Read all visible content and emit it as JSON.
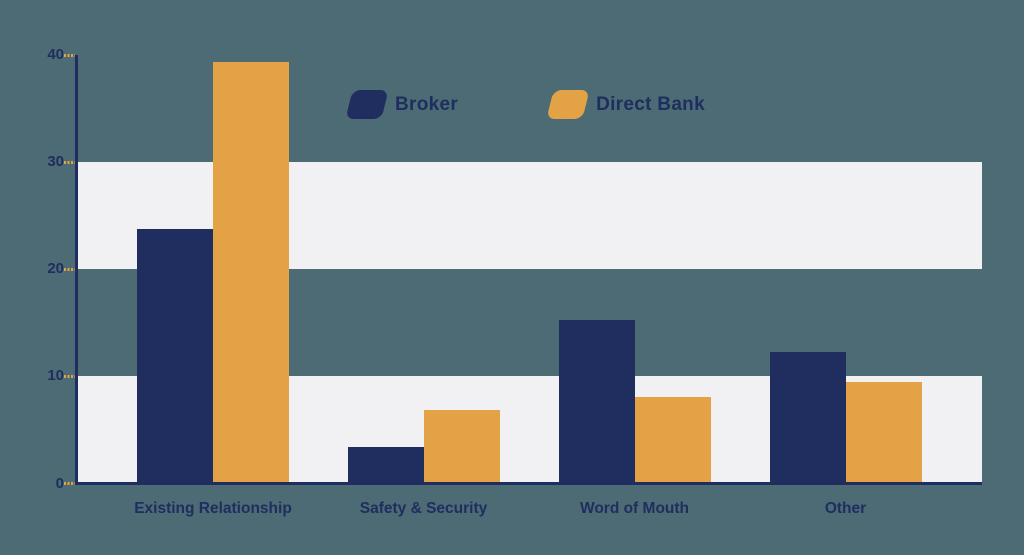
{
  "chart_data": {
    "type": "bar",
    "title": "",
    "xlabel": "",
    "ylabel": "",
    "categories": [
      "Existing Relationship",
      "Safety & Security",
      "Word of Mouth",
      "Other"
    ],
    "series": [
      {
        "name": "Broker",
        "color": "#1f2e5e",
        "values": [
          23.8,
          3.4,
          15.3,
          12.3
        ]
      },
      {
        "name": "Direct Bank",
        "color": "#e2a245",
        "values": [
          39.3,
          6.9,
          8.1,
          9.5
        ]
      }
    ],
    "ylim": [
      0,
      40
    ],
    "yticks": [
      0,
      10,
      20,
      30,
      40
    ],
    "ytick_labels": [
      "0",
      "10",
      "20",
      "30",
      "40"
    ],
    "band_ranges": [
      [
        0,
        10
      ],
      [
        20,
        30
      ]
    ],
    "grid": "off",
    "legend_position": "top-center"
  },
  "colors": {
    "background": "#4c6b74",
    "broker": "#1f2e5e",
    "direct_bank": "#e2a245",
    "band": "#f1f1f3",
    "axis": "#1f2e5e",
    "tick_dash": "#e2a245",
    "label_text": "#1f2e5e"
  }
}
